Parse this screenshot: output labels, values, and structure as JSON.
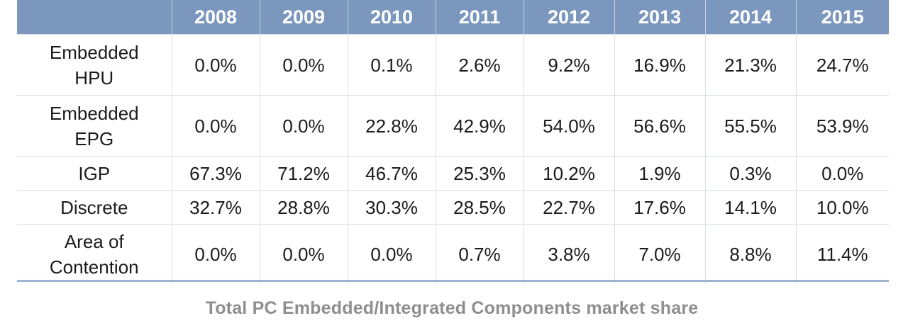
{
  "chart_data": {
    "type": "table",
    "title": "Total PC Embedded/Integrated Components market share",
    "columns": [
      "",
      "2008",
      "2009",
      "2010",
      "2011",
      "2012",
      "2013",
      "2014",
      "2015"
    ],
    "rows": [
      {
        "label": "Embedded HPU",
        "label_lines": [
          "Embedded",
          "HPU"
        ],
        "values": [
          "0.0%",
          "0.0%",
          "0.1%",
          "2.6%",
          "9.2%",
          "16.9%",
          "21.3%",
          "24.7%"
        ]
      },
      {
        "label": "Embedded EPG",
        "label_lines": [
          "Embedded",
          "EPG"
        ],
        "values": [
          "0.0%",
          "0.0%",
          "22.8%",
          "42.9%",
          "54.0%",
          "56.6%",
          "55.5%",
          "53.9%"
        ]
      },
      {
        "label": "IGP",
        "label_lines": [
          "IGP"
        ],
        "values": [
          "67.3%",
          "71.2%",
          "46.7%",
          "25.3%",
          "10.2%",
          "1.9%",
          "0.3%",
          "0.0%"
        ]
      },
      {
        "label": "Discrete",
        "label_lines": [
          "Discrete"
        ],
        "values": [
          "32.7%",
          "28.8%",
          "30.3%",
          "28.5%",
          "22.7%",
          "17.6%",
          "14.1%",
          "10.0%"
        ]
      },
      {
        "label": "Area of Contention",
        "label_lines": [
          "Area of",
          "Contention"
        ],
        "values": [
          "0.0%",
          "0.0%",
          "0.0%",
          "0.7%",
          "3.8%",
          "7.0%",
          "8.8%",
          "11.4%"
        ]
      }
    ]
  },
  "colors": {
    "header_bg": "#7c97bd",
    "header_text": "#ffffff",
    "caption_text": "#8e8e8e",
    "rule": "#9fb4d2"
  }
}
